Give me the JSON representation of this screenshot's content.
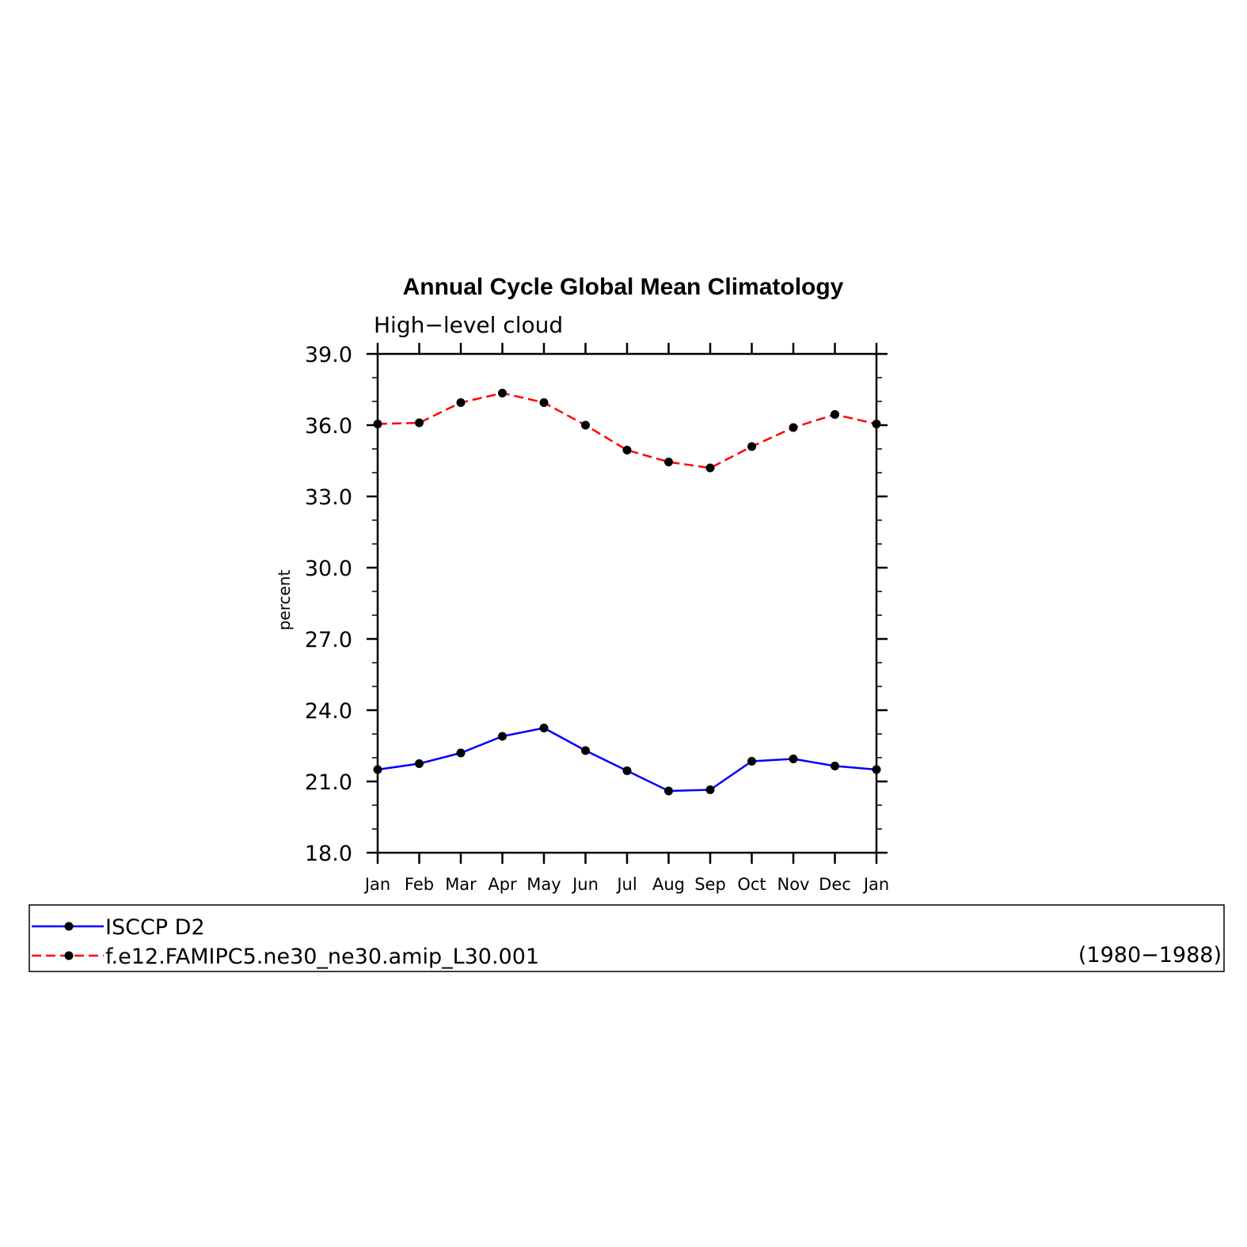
{
  "chart_data": {
    "type": "line",
    "title": "Annual Cycle Global Mean Climatology",
    "subtitle": "High−level cloud",
    "ylabel": "percent",
    "xlabel": "",
    "categories": [
      "Jan",
      "Feb",
      "Mar",
      "Apr",
      "May",
      "Jun",
      "Jul",
      "Aug",
      "Sep",
      "Oct",
      "Nov",
      "Dec",
      "Jan"
    ],
    "ylim": [
      18.0,
      39.0
    ],
    "yticks": [
      "18.0",
      "21.0",
      "24.0",
      "27.0",
      "30.0",
      "33.0",
      "36.0",
      "39.0"
    ],
    "grid": false,
    "series": [
      {
        "name": "ISCCP D2",
        "color": "#0000ff",
        "dash": "solid",
        "marker": "filled-circle",
        "values": [
          21.5,
          21.75,
          22.2,
          22.9,
          23.25,
          22.3,
          21.45,
          20.6,
          20.65,
          21.85,
          21.95,
          21.65,
          21.5
        ]
      },
      {
        "name": "f.e12.FAMIPC5.ne30_ne30.amip_L30.001",
        "color": "#ff0000",
        "dash": "dashed",
        "marker": "filled-circle",
        "values": [
          36.05,
          36.1,
          36.95,
          37.35,
          36.95,
          36.0,
          34.95,
          34.45,
          34.2,
          35.1,
          35.9,
          36.45,
          36.05
        ]
      }
    ],
    "legend": {
      "placement": "bottom",
      "note": "(1980−1988)"
    }
  }
}
